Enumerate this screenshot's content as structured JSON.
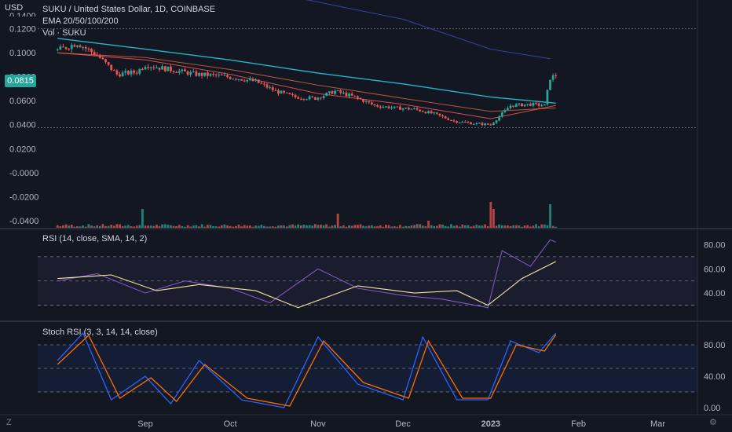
{
  "header": {
    "title": "SUKU / United States Dollar, 1D, COINBASE",
    "indicators": [
      "EMA 20/50/100/200",
      "Vol · SUKU"
    ],
    "currency_label": "USD",
    "current_price": "0.0815",
    "clipped_top_label": "0.1400"
  },
  "panes": {
    "rsi_label": "RSI (14, close, SMA, 14, 2)",
    "stoch_label": "Stoch RSI (3, 3, 14, 14, close)"
  },
  "bottom": {
    "left_button": "Z",
    "right_button": "⚙"
  },
  "colors": {
    "background": "#131722",
    "up": "#26a69a",
    "down": "#ef5350",
    "ema20": "#ef5350",
    "ema50": "#ff7043",
    "ema100": "#26c6da",
    "ema200": "#3949ab",
    "rsi": "#7e57c2",
    "rsi_ma": "#f5e79e",
    "stoch_k": "#2962ff",
    "stoch_d": "#ff6d00"
  },
  "chart_data": [
    {
      "type": "candlestick",
      "title": "SUKU / United States Dollar, 1D, COINBASE",
      "x_ticks": [
        "Sep",
        "Oct",
        "Nov",
        "Dec",
        "2023",
        "Feb",
        "Mar"
      ],
      "y_ticks": [
        "0.1200",
        "0.1000",
        "0.0800",
        "0.0600",
        "0.0400",
        "0.0200",
        "-0.0000",
        "-0.0200",
        "-0.0400"
      ],
      "ylim": [
        -0.046,
        0.144
      ],
      "close_path": [
        {
          "x": "2022-08-01",
          "y": 0.102
        },
        {
          "x": "2022-08-08",
          "y": 0.108
        },
        {
          "x": "2022-08-15",
          "y": 0.098
        },
        {
          "x": "2022-08-22",
          "y": 0.082
        },
        {
          "x": "2022-08-29",
          "y": 0.084
        },
        {
          "x": "2022-09-01",
          "y": 0.09
        },
        {
          "x": "2022-09-05",
          "y": 0.088
        },
        {
          "x": "2022-09-12",
          "y": 0.085
        },
        {
          "x": "2022-09-19",
          "y": 0.082
        },
        {
          "x": "2022-09-26",
          "y": 0.081
        },
        {
          "x": "2022-10-03",
          "y": 0.079
        },
        {
          "x": "2022-10-10",
          "y": 0.076
        },
        {
          "x": "2022-10-17",
          "y": 0.068
        },
        {
          "x": "2022-10-24",
          "y": 0.063
        },
        {
          "x": "2022-10-31",
          "y": 0.062
        },
        {
          "x": "2022-11-07",
          "y": 0.068
        },
        {
          "x": "2022-11-14",
          "y": 0.063
        },
        {
          "x": "2022-11-21",
          "y": 0.056
        },
        {
          "x": "2022-11-28",
          "y": 0.054
        },
        {
          "x": "2022-12-05",
          "y": 0.053
        },
        {
          "x": "2022-12-12",
          "y": 0.049
        },
        {
          "x": "2022-12-19",
          "y": 0.043
        },
        {
          "x": "2022-12-26",
          "y": 0.041
        },
        {
          "x": "2023-01-01",
          "y": 0.04
        },
        {
          "x": "2023-01-08",
          "y": 0.056
        },
        {
          "x": "2023-01-15",
          "y": 0.057
        },
        {
          "x": "2023-01-20",
          "y": 0.056
        },
        {
          "x": "2023-01-22",
          "y": 0.079
        },
        {
          "x": "2023-01-24",
          "y": 0.081
        }
      ],
      "ema_lines": [
        {
          "name": "EMA 20",
          "points": [
            {
              "x": "2022-08-01",
              "y": 0.1
            },
            {
              "x": "2022-09-01",
              "y": 0.094
            },
            {
              "x": "2022-10-01",
              "y": 0.082
            },
            {
              "x": "2022-11-01",
              "y": 0.066
            },
            {
              "x": "2022-12-01",
              "y": 0.057
            },
            {
              "x": "2023-01-01",
              "y": 0.045
            },
            {
              "x": "2023-01-24",
              "y": 0.056
            }
          ]
        },
        {
          "name": "EMA 50",
          "points": [
            {
              "x": "2022-08-01",
              "y": 0.1
            },
            {
              "x": "2022-09-01",
              "y": 0.096
            },
            {
              "x": "2022-10-01",
              "y": 0.086
            },
            {
              "x": "2022-11-01",
              "y": 0.073
            },
            {
              "x": "2022-12-01",
              "y": 0.062
            },
            {
              "x": "2023-01-01",
              "y": 0.051
            },
            {
              "x": "2023-01-24",
              "y": 0.054
            }
          ]
        },
        {
          "name": "EMA 100",
          "points": [
            {
              "x": "2022-08-01",
              "y": 0.112
            },
            {
              "x": "2022-09-01",
              "y": 0.103
            },
            {
              "x": "2022-10-01",
              "y": 0.094
            },
            {
              "x": "2022-11-01",
              "y": 0.083
            },
            {
              "x": "2022-12-01",
              "y": 0.074
            },
            {
              "x": "2023-01-01",
              "y": 0.063
            },
            {
              "x": "2023-01-24",
              "y": 0.058
            }
          ]
        },
        {
          "name": "EMA 200",
          "points": [
            {
              "x": "2022-10-20",
              "y": 0.148
            },
            {
              "x": "2022-12-01",
              "y": 0.128
            },
            {
              "x": "2023-01-01",
              "y": 0.103
            },
            {
              "x": "2023-01-22",
              "y": 0.095
            }
          ]
        }
      ],
      "volume_spikes": [
        {
          "x": "2022-08-31",
          "v": 0.4
        },
        {
          "x": "2022-11-08",
          "v": 0.3
        },
        {
          "x": "2022-12-10",
          "v": 0.15
        },
        {
          "x": "2023-01-01",
          "v": 0.55
        },
        {
          "x": "2023-01-02",
          "v": 0.4
        },
        {
          "x": "2023-01-22",
          "v": 0.5
        }
      ]
    },
    {
      "type": "line",
      "title": "RSI (14, close, SMA, 14, 2)",
      "y_ticks": [
        "80.00",
        "60.00",
        "40.00"
      ],
      "bands": [
        70,
        50,
        30
      ],
      "ylim": [
        20,
        90
      ],
      "series": [
        {
          "name": "RSI",
          "points": [
            {
              "x": "2022-08-01",
              "y": 50
            },
            {
              "x": "2022-08-15",
              "y": 56
            },
            {
              "x": "2022-09-01",
              "y": 40
            },
            {
              "x": "2022-09-15",
              "y": 50
            },
            {
              "x": "2022-10-01",
              "y": 44
            },
            {
              "x": "2022-10-15",
              "y": 32
            },
            {
              "x": "2022-11-01",
              "y": 60
            },
            {
              "x": "2022-11-15",
              "y": 44
            },
            {
              "x": "2022-12-01",
              "y": 38
            },
            {
              "x": "2022-12-15",
              "y": 35
            },
            {
              "x": "2022-12-31",
              "y": 28
            },
            {
              "x": "2023-01-05",
              "y": 75
            },
            {
              "x": "2023-01-15",
              "y": 62
            },
            {
              "x": "2023-01-22",
              "y": 84
            },
            {
              "x": "2023-01-24",
              "y": 82
            }
          ]
        },
        {
          "name": "RSI-based MA",
          "points": [
            {
              "x": "2022-08-01",
              "y": 52
            },
            {
              "x": "2022-08-20",
              "y": 55
            },
            {
              "x": "2022-09-05",
              "y": 42
            },
            {
              "x": "2022-09-20",
              "y": 47
            },
            {
              "x": "2022-10-10",
              "y": 42
            },
            {
              "x": "2022-10-25",
              "y": 28
            },
            {
              "x": "2022-11-15",
              "y": 46
            },
            {
              "x": "2022-12-05",
              "y": 40
            },
            {
              "x": "2022-12-20",
              "y": 42
            },
            {
              "x": "2022-12-31",
              "y": 30
            },
            {
              "x": "2023-01-12",
              "y": 52
            },
            {
              "x": "2023-01-24",
              "y": 66
            }
          ]
        }
      ]
    },
    {
      "type": "line",
      "title": "Stoch RSI (3, 3, 14, 14, close)",
      "y_ticks": [
        "80.00",
        "40.00",
        "0.00"
      ],
      "bands": [
        80,
        50,
        20
      ],
      "ylim": [
        -5,
        105
      ],
      "series": [
        {
          "name": "%K",
          "points": [
            {
              "x": "2022-08-01",
              "y": 60
            },
            {
              "x": "2022-08-10",
              "y": 95
            },
            {
              "x": "2022-08-20",
              "y": 10
            },
            {
              "x": "2022-09-01",
              "y": 40
            },
            {
              "x": "2022-09-10",
              "y": 5
            },
            {
              "x": "2022-09-20",
              "y": 60
            },
            {
              "x": "2022-10-05",
              "y": 10
            },
            {
              "x": "2022-10-20",
              "y": 0
            },
            {
              "x": "2022-11-01",
              "y": 90
            },
            {
              "x": "2022-11-15",
              "y": 30
            },
            {
              "x": "2022-12-01",
              "y": 10
            },
            {
              "x": "2022-12-08",
              "y": 90
            },
            {
              "x": "2022-12-20",
              "y": 10
            },
            {
              "x": "2022-12-31",
              "y": 10
            },
            {
              "x": "2023-01-08",
              "y": 85
            },
            {
              "x": "2023-01-18",
              "y": 70
            },
            {
              "x": "2023-01-24",
              "y": 95
            }
          ]
        },
        {
          "name": "%D",
          "points": [
            {
              "x": "2022-08-01",
              "y": 55
            },
            {
              "x": "2022-08-12",
              "y": 92
            },
            {
              "x": "2022-08-23",
              "y": 12
            },
            {
              "x": "2022-09-03",
              "y": 38
            },
            {
              "x": "2022-09-12",
              "y": 8
            },
            {
              "x": "2022-09-22",
              "y": 55
            },
            {
              "x": "2022-10-07",
              "y": 12
            },
            {
              "x": "2022-10-22",
              "y": 2
            },
            {
              "x": "2022-11-03",
              "y": 85
            },
            {
              "x": "2022-11-17",
              "y": 32
            },
            {
              "x": "2022-12-03",
              "y": 12
            },
            {
              "x": "2022-12-10",
              "y": 85
            },
            {
              "x": "2022-12-22",
              "y": 12
            },
            {
              "x": "2023-01-01",
              "y": 12
            },
            {
              "x": "2023-01-10",
              "y": 80
            },
            {
              "x": "2023-01-20",
              "y": 72
            },
            {
              "x": "2023-01-24",
              "y": 93
            }
          ]
        }
      ]
    }
  ]
}
